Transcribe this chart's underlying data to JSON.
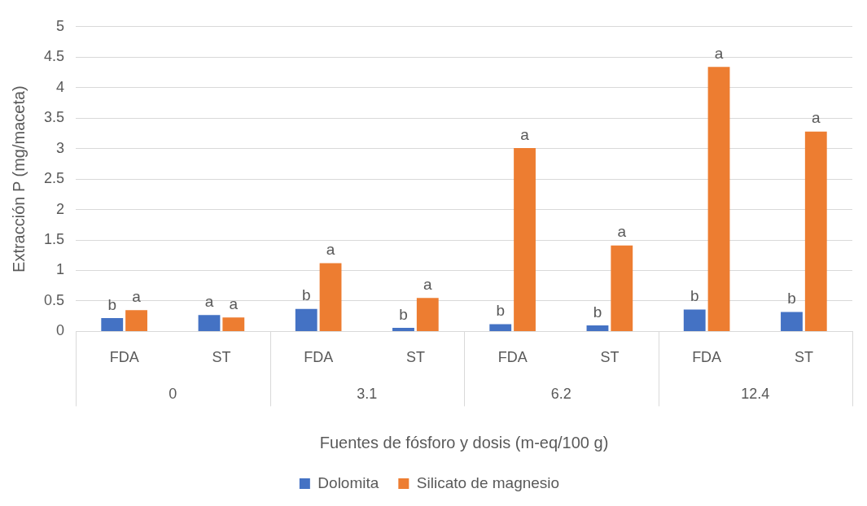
{
  "chart_data": {
    "type": "bar",
    "xlabel": "Fuentes de fósforo y dosis (m-eq/100 g)",
    "ylabel": "Extracción P (mg/maceta)",
    "categories": [
      "FDA",
      "ST",
      "FDA",
      "ST",
      "FDA",
      "ST",
      "FDA",
      "ST"
    ],
    "series": [
      {
        "name": "Dolomita",
        "color": "#4472c4",
        "values": [
          0.22,
          0.27,
          0.37,
          0.06,
          0.12,
          0.1,
          0.36,
          0.32
        ],
        "value_labels": [
          "b",
          "a",
          "b",
          "b",
          "b",
          "b",
          "b",
          "b"
        ]
      },
      {
        "name": "Silicato de magnesio",
        "color": "#ed7d31",
        "values": [
          0.35,
          0.23,
          1.12,
          0.55,
          3.01,
          1.41,
          4.34,
          3.28
        ],
        "value_labels": [
          "a",
          "a",
          "a",
          "a",
          "a",
          "a",
          "a",
          "a"
        ]
      }
    ],
    "annotations": [
      "0",
      "3.1",
      "6.2",
      "12.4"
    ],
    "ylim": [
      0,
      5
    ],
    "yticks": [
      0,
      0.5,
      1,
      1.5,
      2,
      2.5,
      3,
      3.5,
      4,
      4.5,
      5
    ],
    "grid": "y",
    "legend": "bottom"
  }
}
